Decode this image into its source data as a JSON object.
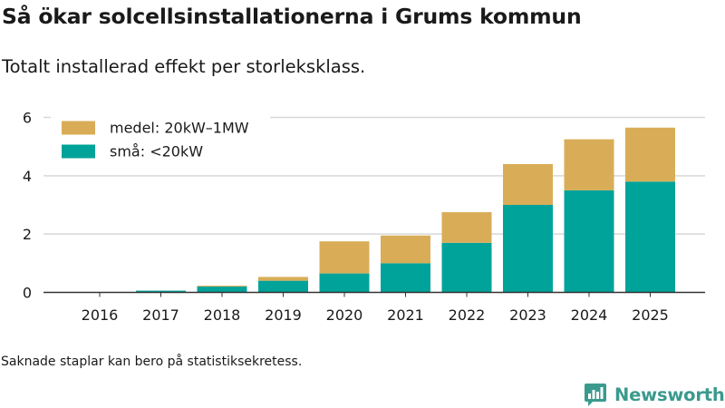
{
  "header": {
    "title": "Så ökar solcellsinstallationerna i Grums kommun",
    "subtitle": "Totalt installerad effekt per storleksklass."
  },
  "footer": {
    "note": "Saknade staplar kan bero på statistiksekretess.",
    "brand": "Newsworthy",
    "brand_icon": "bar-chart-logo-icon"
  },
  "colors": {
    "small": "#00a39a",
    "medium": "#d9ad57",
    "grid": "#d8d8d8",
    "axis": "#333333",
    "text": "#1a1a1a",
    "brand": "#3a9a8d"
  },
  "chart_data": {
    "type": "bar",
    "stacked": true,
    "categories": [
      "2016",
      "2017",
      "2018",
      "2019",
      "2020",
      "2021",
      "2022",
      "2023",
      "2024",
      "2025"
    ],
    "series": [
      {
        "name": "små: <20kW",
        "color": "#00a39a",
        "values": [
          0.01,
          0.06,
          0.2,
          0.4,
          0.65,
          1.0,
          1.7,
          3.0,
          3.5,
          3.8
        ]
      },
      {
        "name": "medel: 20kW–1MW",
        "color": "#d9ad57",
        "values": [
          0,
          0,
          0.03,
          0.13,
          1.1,
          0.95,
          1.05,
          1.4,
          1.75,
          1.85
        ]
      }
    ],
    "legend_order": [
      "medel: 20kW–1MW",
      "små: <20kW"
    ],
    "legend_position": "top-left",
    "yticks": [
      0,
      2,
      4,
      6
    ],
    "ylim": [
      0,
      6
    ],
    "grid": true,
    "title": "Så ökar solcellsinstallationerna i Grums kommun",
    "subtitle": "Totalt installerad effekt per storleksklass.",
    "xlabel": "",
    "ylabel": ""
  }
}
